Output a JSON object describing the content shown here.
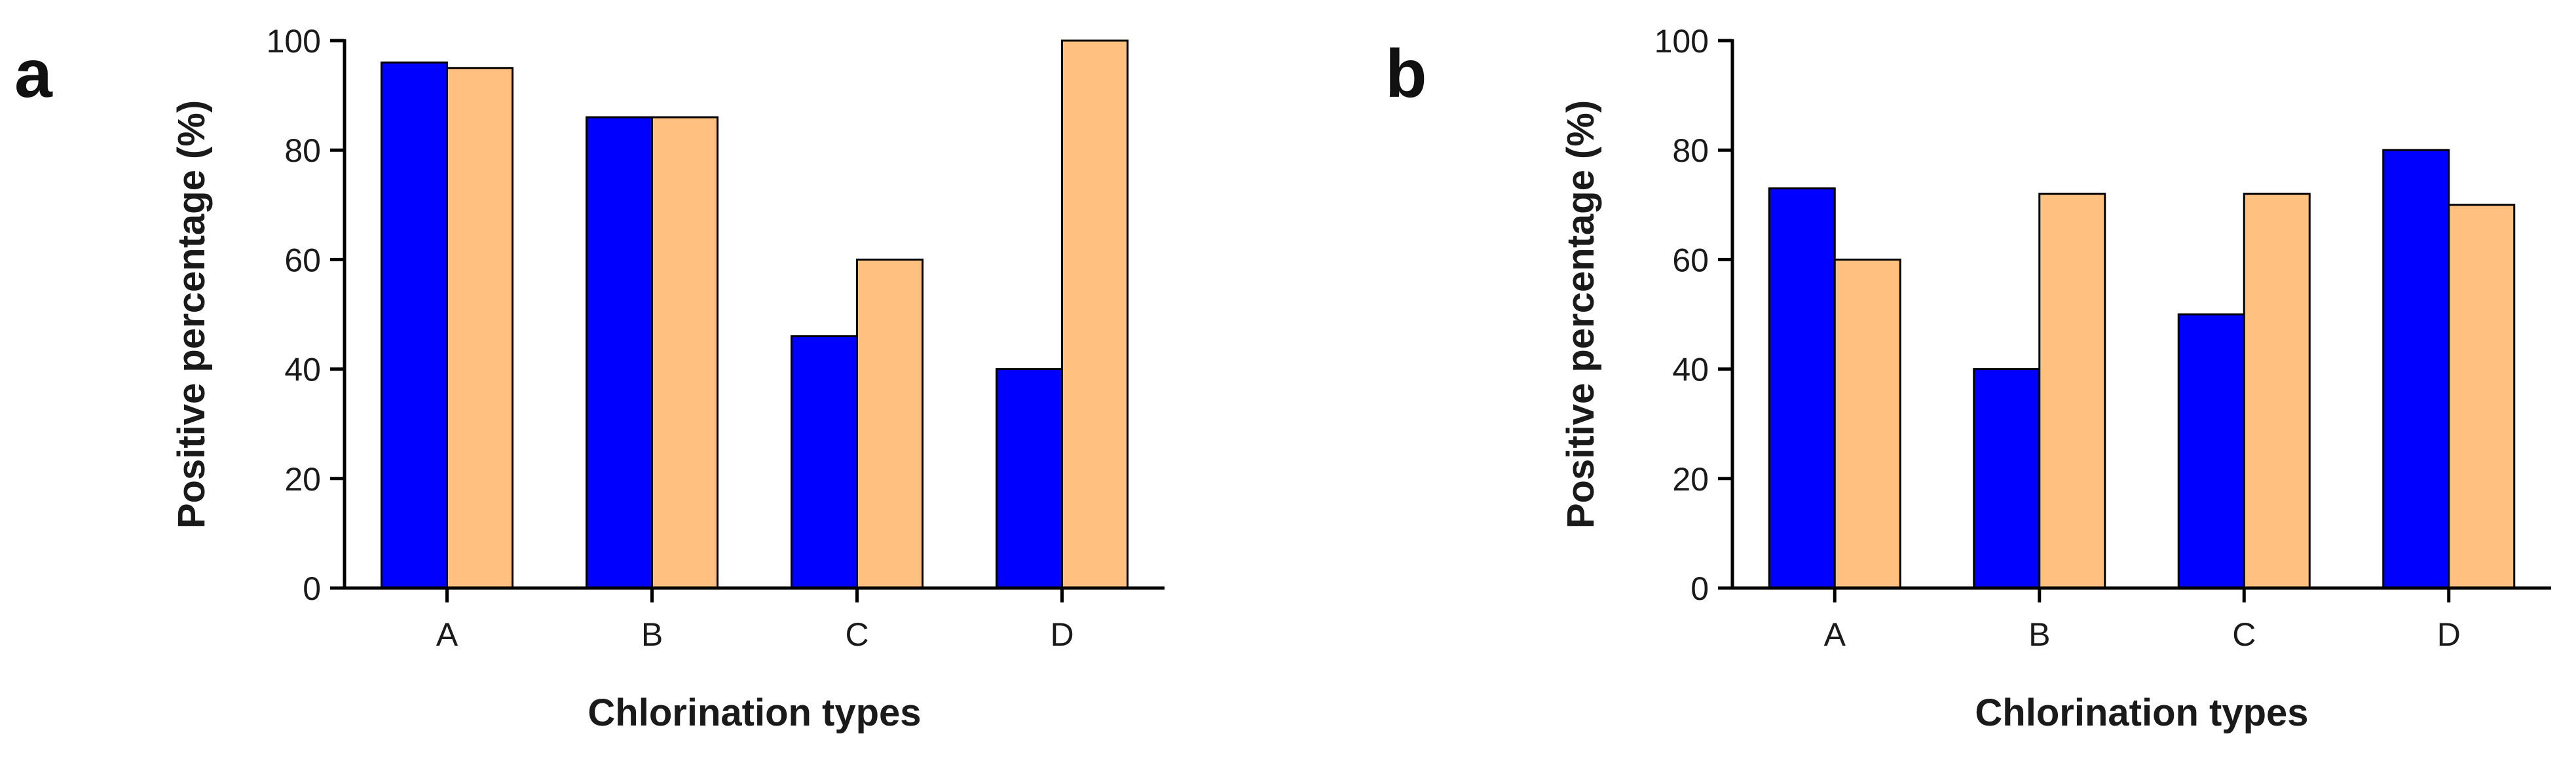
{
  "colors": {
    "series1": "#0000ff",
    "series2": "#ffc080",
    "axis": "#000000",
    "text": "#1a1a1a"
  },
  "chart_data": [
    {
      "panel_label": "a",
      "type": "bar",
      "categories": [
        "A",
        "B",
        "C",
        "D"
      ],
      "series": [
        {
          "color": "#0000ff",
          "values": [
            96,
            86,
            46,
            40
          ]
        },
        {
          "color": "#ffc080",
          "values": [
            95,
            86,
            60,
            100
          ]
        }
      ],
      "xlabel": "Chlorination types",
      "ylabel": "Positive percentage (%)",
      "ylim": [
        0,
        100
      ],
      "yticks": [
        0,
        20,
        40,
        60,
        80,
        100
      ],
      "grid": false,
      "legend": "none"
    },
    {
      "panel_label": "b",
      "type": "bar",
      "categories": [
        "A",
        "B",
        "C",
        "D"
      ],
      "series": [
        {
          "color": "#0000ff",
          "values": [
            73,
            40,
            50,
            80
          ]
        },
        {
          "color": "#ffc080",
          "values": [
            60,
            72,
            72,
            70
          ]
        }
      ],
      "xlabel": "Chlorination types",
      "ylabel": "Positive percentage (%)",
      "ylim": [
        0,
        100
      ],
      "yticks": [
        0,
        20,
        40,
        60,
        80,
        100
      ],
      "grid": false,
      "legend": "none"
    }
  ]
}
